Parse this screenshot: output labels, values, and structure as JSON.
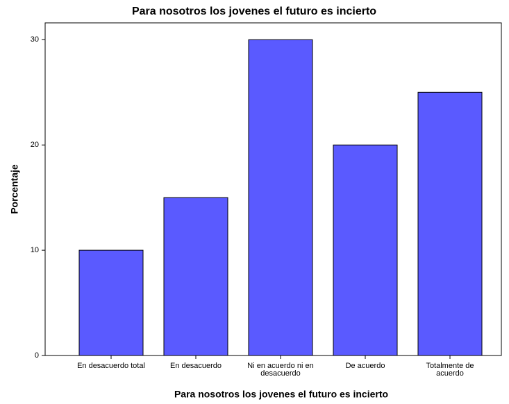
{
  "chart_data": {
    "type": "bar",
    "title": "Para nosotros los jovenes el futuro es incierto",
    "x_label": "Para nosotros los jovenes el futuro es incierto",
    "y_label": "Porcentaje",
    "categories": [
      "En desacuerdo total",
      "En desacuerdo",
      "Ni en acuerdo ni en desacuerdo",
      "De acuerdo",
      "Totalmente de acuerdo"
    ],
    "values": [
      10,
      15,
      30,
      20,
      25
    ],
    "color": "#5a5aff",
    "ylim": [
      0,
      31.6
    ],
    "yticks": [
      0,
      10,
      20,
      30
    ],
    "grid": false
  }
}
